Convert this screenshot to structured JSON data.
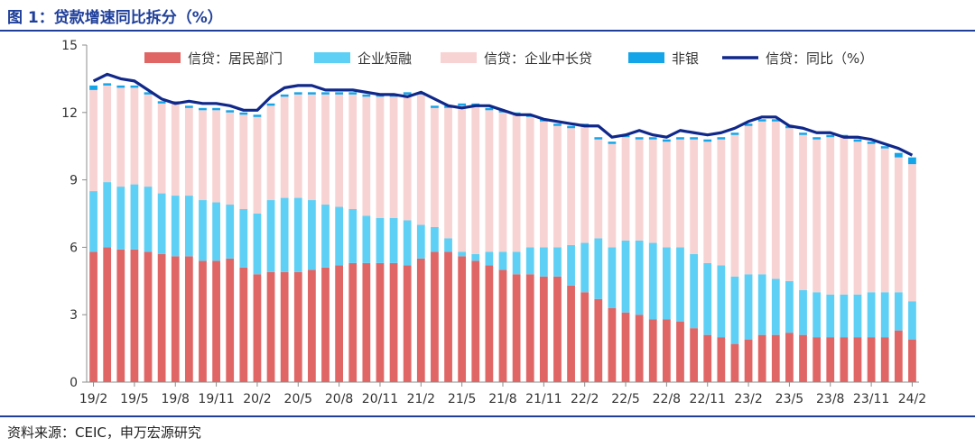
{
  "figure": {
    "title": "图 1：贷款增速同比拆分（%）",
    "source": "资料来源：CEIC，申万宏源研究"
  },
  "colors": {
    "household": "#e06666",
    "short_term": "#5fd0f5",
    "mid_long": "#f8d3d3",
    "non_bank": "#14a5e8",
    "total_line": "#10288a",
    "title": "#1f3f9a"
  },
  "chart_data": {
    "type": "bar",
    "stacked": true,
    "ylim": [
      0,
      15
    ],
    "yticks": [
      0,
      3,
      6,
      9,
      12,
      15
    ],
    "grid": false,
    "legend_position": "top",
    "x_tick_labels": [
      "19/2",
      "19/5",
      "19/8",
      "19/11",
      "20/2",
      "20/5",
      "20/8",
      "20/11",
      "21/2",
      "21/5",
      "21/8",
      "21/11",
      "22/2",
      "22/5",
      "22/8",
      "22/11",
      "23/2",
      "23/5",
      "23/8",
      "23/11",
      "24/2"
    ],
    "x_tick_every": 3,
    "categories": [
      "19/2",
      "19/3",
      "19/4",
      "19/5",
      "19/6",
      "19/7",
      "19/8",
      "19/9",
      "19/10",
      "19/11",
      "19/12",
      "20/1",
      "20/2",
      "20/3",
      "20/4",
      "20/5",
      "20/6",
      "20/7",
      "20/8",
      "20/9",
      "20/10",
      "20/11",
      "20/12",
      "21/1",
      "21/2",
      "21/3",
      "21/4",
      "21/5",
      "21/6",
      "21/7",
      "21/8",
      "21/9",
      "21/10",
      "21/11",
      "21/12",
      "22/1",
      "22/2",
      "22/3",
      "22/4",
      "22/5",
      "22/6",
      "22/7",
      "22/8",
      "22/9",
      "22/10",
      "22/11",
      "22/12",
      "23/1",
      "23/2",
      "23/3",
      "23/4",
      "23/5",
      "23/6",
      "23/7",
      "23/8",
      "23/9",
      "23/10",
      "23/11",
      "23/12",
      "24/1",
      "24/2"
    ],
    "series": [
      {
        "name": "信贷：居民部门",
        "kind": "bar",
        "color_key": "household",
        "values": [
          5.8,
          6.0,
          5.9,
          5.9,
          5.8,
          5.7,
          5.6,
          5.6,
          5.4,
          5.4,
          5.5,
          5.1,
          4.8,
          4.9,
          4.9,
          4.9,
          5.0,
          5.1,
          5.2,
          5.3,
          5.3,
          5.3,
          5.3,
          5.2,
          5.5,
          5.8,
          5.8,
          5.6,
          5.4,
          5.2,
          5.0,
          4.8,
          4.8,
          4.7,
          4.7,
          4.3,
          4.0,
          3.7,
          3.3,
          3.1,
          3.0,
          2.8,
          2.8,
          2.7,
          2.4,
          2.1,
          2.0,
          1.7,
          1.9,
          2.1,
          2.1,
          2.2,
          2.1,
          2.0,
          2.0,
          2.0,
          2.0,
          2.0,
          2.0,
          2.3,
          1.9
        ]
      },
      {
        "name": "企业短融",
        "kind": "bar",
        "color_key": "short_term",
        "values": [
          2.7,
          2.9,
          2.8,
          2.9,
          2.9,
          2.7,
          2.7,
          2.7,
          2.7,
          2.6,
          2.4,
          2.6,
          2.7,
          3.2,
          3.3,
          3.3,
          3.1,
          2.8,
          2.6,
          2.4,
          2.1,
          2.0,
          2.0,
          2.0,
          1.5,
          1.1,
          0.6,
          0.2,
          0.3,
          0.6,
          0.8,
          1.0,
          1.2,
          1.3,
          1.3,
          1.8,
          2.2,
          2.7,
          2.7,
          3.2,
          3.3,
          3.4,
          3.2,
          3.3,
          3.3,
          3.2,
          3.2,
          3.0,
          2.9,
          2.7,
          2.5,
          2.3,
          2.0,
          2.0,
          1.9,
          1.9,
          1.9,
          2.0,
          2.0,
          1.7,
          1.7
        ]
      },
      {
        "name": "信贷：企业中长贷",
        "kind": "bar",
        "color_key": "mid_long",
        "values": [
          4.5,
          4.3,
          4.4,
          4.3,
          4.1,
          4.0,
          4.1,
          3.9,
          4.0,
          4.1,
          4.1,
          4.2,
          4.3,
          4.2,
          4.5,
          4.6,
          4.7,
          4.9,
          5.0,
          5.1,
          5.3,
          5.4,
          5.4,
          5.6,
          5.8,
          5.3,
          5.8,
          6.5,
          6.6,
          6.3,
          6.2,
          6.1,
          5.8,
          5.6,
          5.4,
          5.2,
          5.2,
          4.4,
          4.6,
          4.6,
          4.5,
          4.6,
          4.7,
          4.8,
          5.1,
          5.4,
          5.6,
          6.3,
          6.6,
          6.8,
          7.0,
          6.8,
          6.9,
          6.8,
          7.0,
          7.0,
          6.8,
          6.6,
          6.4,
          6.0,
          6.1
        ]
      },
      {
        "name": "非银",
        "kind": "bar",
        "color_key": "non_bank",
        "values": [
          0.2,
          0.1,
          0.1,
          0.1,
          0.1,
          0.1,
          0.1,
          0.1,
          0.1,
          0.1,
          0.1,
          0.1,
          0.1,
          0.1,
          0.1,
          0.1,
          0.1,
          0.1,
          0.1,
          0.1,
          0.1,
          0.1,
          0.1,
          0.1,
          0.1,
          0.1,
          0.1,
          0.1,
          0.1,
          0.1,
          0.1,
          0.1,
          0.1,
          0.1,
          0.1,
          0.1,
          0.1,
          0.1,
          0.1,
          0.1,
          0.1,
          0.1,
          0.1,
          0.1,
          0.1,
          0.1,
          0.1,
          0.1,
          0.1,
          0.1,
          0.1,
          0.1,
          0.1,
          0.1,
          0.1,
          0.1,
          0.1,
          0.1,
          0.1,
          0.2,
          0.3
        ]
      },
      {
        "name": "信贷：同比（%）",
        "kind": "line",
        "color_key": "total_line",
        "values": [
          13.4,
          13.7,
          13.5,
          13.4,
          13.0,
          12.6,
          12.4,
          12.5,
          12.4,
          12.4,
          12.3,
          12.1,
          12.1,
          12.7,
          13.1,
          13.2,
          13.2,
          13.0,
          13.0,
          13.0,
          12.9,
          12.8,
          12.8,
          12.7,
          12.9,
          12.6,
          12.3,
          12.2,
          12.3,
          12.3,
          12.1,
          11.9,
          11.9,
          11.7,
          11.6,
          11.5,
          11.4,
          11.4,
          10.9,
          11.0,
          11.2,
          11.0,
          10.9,
          11.2,
          11.1,
          11.0,
          11.1,
          11.3,
          11.6,
          11.8,
          11.8,
          11.4,
          11.3,
          11.1,
          11.1,
          10.9,
          10.9,
          10.8,
          10.6,
          10.4,
          10.1
        ]
      }
    ]
  }
}
